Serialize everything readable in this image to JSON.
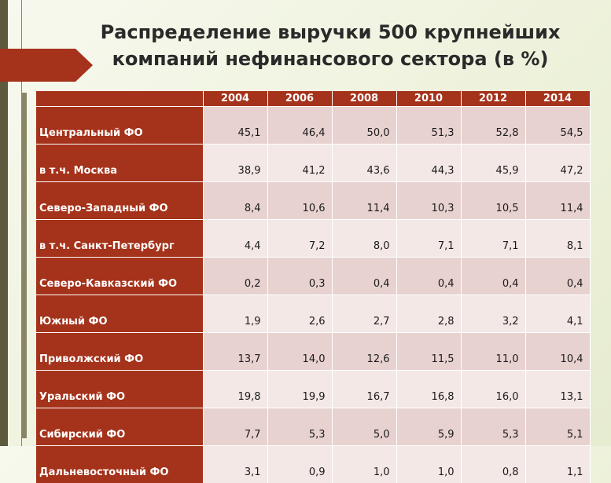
{
  "title": {
    "line1": "Распределение выручки 500 крупнейших",
    "line2": "компаний нефинансового сектора (в %)"
  },
  "table": {
    "years": [
      "2004",
      "2006",
      "2008",
      "2010",
      "2012",
      "2014"
    ],
    "rows": [
      {
        "label": "Центральный ФО",
        "values": [
          "45,1",
          "46,4",
          "50,0",
          "51,3",
          "52,8",
          "54,5"
        ]
      },
      {
        "label": "в т.ч. Москва",
        "values": [
          "38,9",
          "41,2",
          "43,6",
          "44,3",
          "45,9",
          "47,2"
        ]
      },
      {
        "label": "Северо-Западный ФО",
        "values": [
          "8,4",
          "10,6",
          "11,4",
          "10,3",
          "10,5",
          "11,4"
        ]
      },
      {
        "label": "в т.ч. Санкт-Петербург",
        "values": [
          "4,4",
          "7,2",
          "8,0",
          "7,1",
          "7,1",
          "8,1"
        ]
      },
      {
        "label": "Северо-Кавказский ФО",
        "values": [
          "0,2",
          "0,3",
          "0,4",
          "0,4",
          "0,4",
          "0,4"
        ]
      },
      {
        "label": "Южный ФО",
        "values": [
          "1,9",
          "2,6",
          "2,7",
          "2,8",
          "3,2",
          "4,1"
        ]
      },
      {
        "label": "Приволжский ФО",
        "values": [
          "13,7",
          "14,0",
          "12,6",
          "11,5",
          "11,0",
          "10,4"
        ]
      },
      {
        "label": "Уральский ФО",
        "values": [
          "19,8",
          "19,9",
          "16,7",
          "16,8",
          "16,0",
          "13,1"
        ]
      },
      {
        "label": "Сибирский ФО",
        "values": [
          "7,7",
          "5,3",
          "5,0",
          "5,9",
          "5,3",
          "5,1"
        ]
      },
      {
        "label": "Дальневосточный ФО",
        "values": [
          "3,1",
          "0,9",
          "1,0",
          "1,0",
          "0,8",
          "1,1"
        ]
      }
    ]
  },
  "colors": {
    "accent": "#a5321a",
    "row_odd": "#e7d2d0",
    "row_even": "#f3e8e6"
  }
}
